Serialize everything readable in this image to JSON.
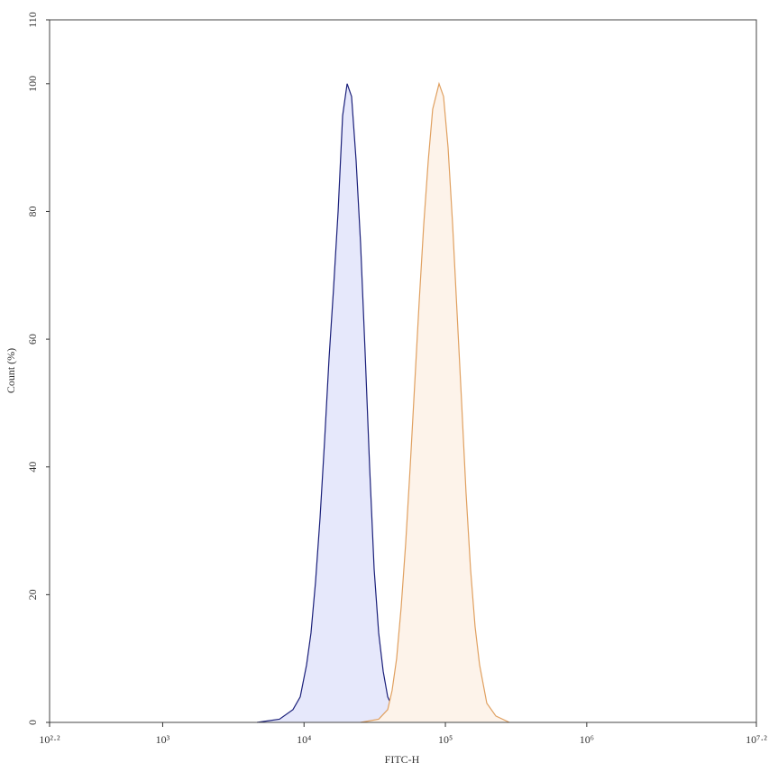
{
  "chart_data": {
    "type": "histogram-overlay",
    "xlabel": "FITC-H",
    "ylabel": "Count (%)",
    "xlog": true,
    "xlim": [
      158.49,
      15848932
    ],
    "xticks": [
      {
        "value": 158.49,
        "label": "10²·²"
      },
      {
        "value": 1000,
        "label": "10³"
      },
      {
        "value": 10000,
        "label": "10⁴"
      },
      {
        "value": 100000,
        "label": "10⁵"
      },
      {
        "value": 1000000,
        "label": "10⁶"
      },
      {
        "value": 15848932,
        "label": "10⁷·²"
      }
    ],
    "ylim": [
      0,
      110
    ],
    "yticks": [
      0,
      20,
      40,
      60,
      80,
      100,
      110
    ],
    "series": [
      {
        "color": "#1a1f7a",
        "fill": "#e6e8fb",
        "x": [
          4645,
          6700,
          8350,
          9400,
          10420,
          11200,
          12060,
          12980,
          13970,
          15030,
          16180,
          17420,
          18750,
          20180,
          21690,
          23350,
          25120,
          27040,
          29110,
          31330,
          33730,
          36310,
          39080,
          45190,
          56360
        ],
        "values": [
          0,
          0.5,
          2,
          4,
          9,
          14,
          22,
          32,
          44,
          57,
          68,
          80,
          95,
          100,
          98,
          88,
          75,
          58,
          40,
          24,
          14,
          8,
          4,
          1,
          0
        ]
      },
      {
        "color": "#e0a060",
        "fill": "#fdf3ea",
        "x": [
          25120,
          33730,
          39080,
          41980,
          45190,
          48640,
          52360,
          56360,
          60670,
          65310,
          70310,
          75680,
          81280,
          90160,
          97050,
          104470,
          112460,
          121060,
          130320,
          139960,
          150660,
          162180,
          174580,
          196340,
          227510,
          283790
        ],
        "values": [
          0,
          0.5,
          2,
          5,
          10,
          18,
          28,
          40,
          53,
          66,
          78,
          88,
          96,
          100,
          98,
          90,
          78,
          64,
          50,
          36,
          24,
          15,
          9,
          3,
          1,
          0
        ]
      }
    ]
  }
}
